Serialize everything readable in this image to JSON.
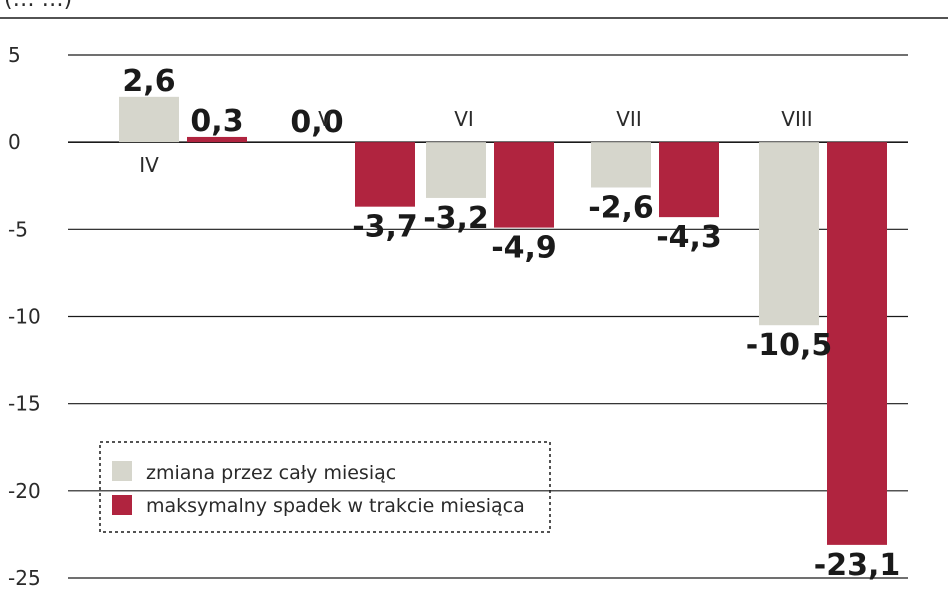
{
  "header": {
    "partial_text": "(… …)"
  },
  "colors": {
    "series1": "#d6d6cc",
    "series2": "#b0243f",
    "grid": "#1a1a1a",
    "text": "#1a1a1a"
  },
  "chart_data": {
    "type": "bar",
    "categories": [
      "IV",
      "V",
      "VI",
      "VII",
      "VIII"
    ],
    "series": [
      {
        "name": "zmiana przez cały miesiąc",
        "values": [
          2.6,
          0.0,
          -3.2,
          -2.6,
          -10.5
        ],
        "labels": [
          "2,6",
          "0,0",
          "-3,2",
          "-2,6",
          "-10,5"
        ]
      },
      {
        "name": "maksymalny spadek w trakcie miesiąca",
        "values": [
          0.3,
          -3.7,
          -4.9,
          -4.3,
          -23.1
        ],
        "labels": [
          "0,3",
          "-3,7",
          "-4,9",
          "-4,3",
          "-23,1"
        ]
      }
    ],
    "yticks": [
      5,
      0,
      -5,
      -10,
      -15,
      -20,
      -25
    ],
    "ytick_labels": [
      "5",
      "0",
      "-5",
      "-10",
      "-15",
      "-20",
      "-25"
    ],
    "ylim": [
      -25,
      5
    ],
    "grid": true,
    "legend": "bottom-left"
  }
}
